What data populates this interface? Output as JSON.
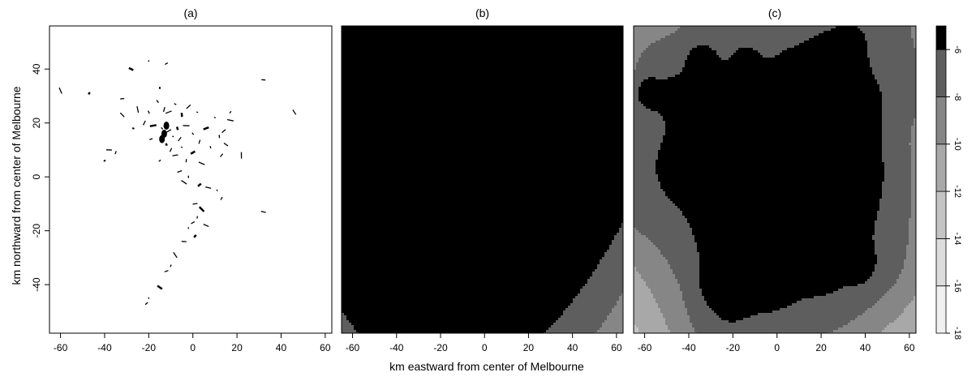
{
  "chart_data": {
    "type": "heatmap",
    "xlabel": "km eastward from center of Melbourne",
    "ylabel": "km northward from center of Melbourne",
    "xlim": [
      -65,
      63
    ],
    "ylim": [
      -58,
      56
    ],
    "xticks": [
      -60,
      -40,
      -20,
      0,
      20,
      40,
      60
    ],
    "yticks": [
      -40,
      -20,
      0,
      20,
      40
    ],
    "colorbar": {
      "range": [
        -18,
        -5
      ],
      "levels": [
        -18,
        -16,
        -14,
        -12,
        -10,
        -8,
        -6
      ],
      "tick_labels": [
        "-6",
        "-8",
        "-10",
        "-12",
        "-14",
        "-16",
        "-18"
      ],
      "colors": [
        "#ffffff",
        "#f0f0f0",
        "#dcdcdc",
        "#c4c4c4",
        "#a8a8a8",
        "#868686",
        "#5e5e5e",
        "#000000"
      ]
    },
    "panels": [
      {
        "title": "(a)",
        "points": [
          [
            -15,
            33
          ],
          [
            -16,
            28
          ],
          [
            -13,
            25
          ],
          [
            -11,
            24
          ],
          [
            -8,
            27
          ],
          [
            -5,
            23
          ],
          [
            -2,
            26
          ],
          [
            2,
            24
          ],
          [
            -20,
            24
          ],
          [
            -22,
            20
          ],
          [
            -18,
            19
          ],
          [
            -14,
            18
          ],
          [
            -13,
            16
          ],
          [
            -11,
            17
          ],
          [
            -9,
            15
          ],
          [
            -7,
            18
          ],
          [
            -6,
            14
          ],
          [
            -3,
            19
          ],
          [
            0,
            16
          ],
          [
            3,
            13
          ],
          [
            6,
            18
          ],
          [
            10,
            22
          ],
          [
            12,
            15
          ],
          [
            14,
            17
          ],
          [
            17,
            21
          ],
          [
            -12,
            12
          ],
          [
            -10,
            10
          ],
          [
            -8,
            8
          ],
          [
            -5,
            11
          ],
          [
            -3,
            6
          ],
          [
            0,
            9
          ],
          [
            4,
            5
          ],
          [
            8,
            11
          ],
          [
            13,
            8
          ],
          [
            -38,
            10
          ],
          [
            -40,
            6
          ],
          [
            -35,
            9
          ],
          [
            -6,
            2
          ],
          [
            -4,
            -2
          ],
          [
            -2,
            0
          ],
          [
            3,
            -3
          ],
          [
            7,
            -4
          ],
          [
            11,
            -5
          ],
          [
            13,
            -8
          ],
          [
            1,
            -10
          ],
          [
            4,
            -12
          ],
          [
            2,
            -15
          ],
          [
            0,
            -17
          ],
          [
            6,
            -18
          ],
          [
            -2,
            -19
          ],
          [
            1,
            -22
          ],
          [
            -4,
            -24
          ],
          [
            -8,
            -29
          ],
          [
            -10,
            -33
          ],
          [
            -12,
            -35
          ],
          [
            -15,
            -41
          ],
          [
            -20,
            -45
          ],
          [
            -21,
            -47
          ],
          [
            32,
            -13
          ],
          [
            -60,
            32
          ],
          [
            -47,
            31
          ],
          [
            -32,
            29
          ],
          [
            -32,
            23
          ],
          [
            -20,
            43
          ],
          [
            -12,
            42
          ],
          [
            -28,
            40
          ],
          [
            -25,
            25
          ],
          [
            17,
            24
          ],
          [
            32,
            36
          ],
          [
            46,
            24
          ],
          [
            -27,
            18
          ],
          [
            -19,
            14
          ],
          [
            15,
            12
          ],
          [
            22,
            8
          ],
          [
            -15,
            6
          ]
        ]
      },
      {
        "title": "(b)",
        "blobs": [
          [
            -14,
            17,
            42,
            1.7,
            0
          ],
          [
            -5,
            10,
            38,
            1.0,
            0.5
          ],
          [
            -20,
            -35,
            30,
            1.6,
            0
          ],
          [
            5,
            -20,
            30,
            1.0,
            0
          ],
          [
            -5,
            -5,
            26,
            1.0,
            0
          ],
          [
            33,
            30,
            26,
            1.4,
            0
          ],
          [
            -35,
            3,
            22,
            1.0,
            0
          ],
          [
            -55,
            24,
            22,
            1.0,
            0
          ],
          [
            22,
            18,
            24,
            0.8,
            0
          ],
          [
            17,
            -12,
            20,
            0.7,
            0
          ],
          [
            30,
            -2,
            15,
            0.4,
            0
          ],
          [
            -20,
            43,
            28,
            0.8,
            0
          ],
          [
            -45,
            35,
            24,
            0.6,
            0
          ],
          [
            10,
            40,
            20,
            0.5,
            0
          ],
          [
            40,
            10,
            20,
            0.8,
            0
          ],
          [
            -55,
            5,
            18,
            0.7,
            0
          ],
          [
            38,
            42,
            18,
            0.9,
            0
          ]
        ]
      },
      {
        "title": "(c)",
        "blobs": [
          [
            -10,
            15,
            7,
            4.2,
            0.3
          ],
          [
            -13,
            28,
            5,
            2.0,
            0
          ],
          [
            -3,
            25,
            6,
            2.0,
            0
          ],
          [
            2,
            14,
            5,
            2.0,
            0
          ],
          [
            -40,
            8,
            3.8,
            2.5,
            0
          ],
          [
            -58,
            31,
            3.5,
            2.0,
            0
          ],
          [
            -48,
            29,
            3.5,
            1.9,
            0
          ],
          [
            -34,
            42,
            3.5,
            2.5,
            0
          ],
          [
            -14,
            42,
            3.5,
            1.8,
            0
          ],
          [
            -26,
            22,
            6,
            1.4,
            0
          ],
          [
            -20,
            6,
            5,
            1.2,
            0
          ],
          [
            9,
            -4,
            4,
            1.6,
            0
          ],
          [
            2,
            -8,
            3.5,
            1.6,
            0
          ],
          [
            14,
            11,
            3.8,
            2.1,
            0
          ],
          [
            13,
            -15,
            3.5,
            2.6,
            0
          ],
          [
            3,
            -20,
            3.5,
            2.4,
            0
          ],
          [
            37,
            -32,
            4,
            1.7,
            0
          ],
          [
            -21,
            -45,
            4,
            1.6,
            0
          ],
          [
            -27,
            -40,
            5,
            0.9,
            0
          ],
          [
            -10,
            -30,
            5,
            0.9,
            0
          ],
          [
            5,
            -32,
            4,
            0.9,
            0
          ],
          [
            -6,
            5,
            10,
            1.5,
            0.3
          ],
          [
            5,
            14,
            12,
            1.2,
            0
          ],
          [
            -8,
            -12,
            10,
            1.0,
            0
          ],
          [
            -20,
            18,
            12,
            1.0,
            0
          ],
          [
            14,
            3,
            10,
            1.1,
            0
          ],
          [
            0,
            0,
            34,
            1.2,
            0
          ],
          [
            3,
            -10,
            24,
            0.7,
            0
          ]
        ],
        "spokes": [
          [
            -10,
            15,
            48,
            62,
            1.1,
            5
          ],
          [
            -10,
            15,
            35,
            22,
            0.9,
            5
          ],
          [
            -10,
            15,
            44,
            -5,
            0.8,
            5
          ],
          [
            -10,
            15,
            56,
            36,
            0.9,
            5
          ],
          [
            -10,
            15,
            -32,
            55,
            0.6,
            5
          ],
          [
            -10,
            15,
            -52,
            10,
            1.0,
            5
          ],
          [
            -10,
            15,
            -60,
            -8,
            0.7,
            5
          ],
          [
            -10,
            15,
            -58,
            42,
            0.6,
            5
          ],
          [
            -10,
            15,
            -18,
            -38,
            1.0,
            5
          ],
          [
            -10,
            15,
            25,
            -38,
            0.8,
            5
          ],
          [
            -10,
            15,
            2,
            -58,
            0.7,
            5
          ],
          [
            -10,
            15,
            45,
            -30,
            0.7,
            5
          ],
          [
            -10,
            15,
            5,
            55,
            0.6,
            5
          ],
          [
            -10,
            15,
            28,
            52,
            0.7,
            5
          ],
          [
            -10,
            15,
            -40,
            30,
            0.9,
            5
          ],
          [
            -10,
            15,
            38,
            10,
            0.8,
            5
          ],
          [
            -10,
            15,
            -35,
            -20,
            0.6,
            5
          ],
          [
            -10,
            15,
            18,
            -25,
            0.9,
            5
          ],
          [
            -10,
            15,
            -25,
            -52,
            0.8,
            5
          ]
        ]
      }
    ]
  }
}
